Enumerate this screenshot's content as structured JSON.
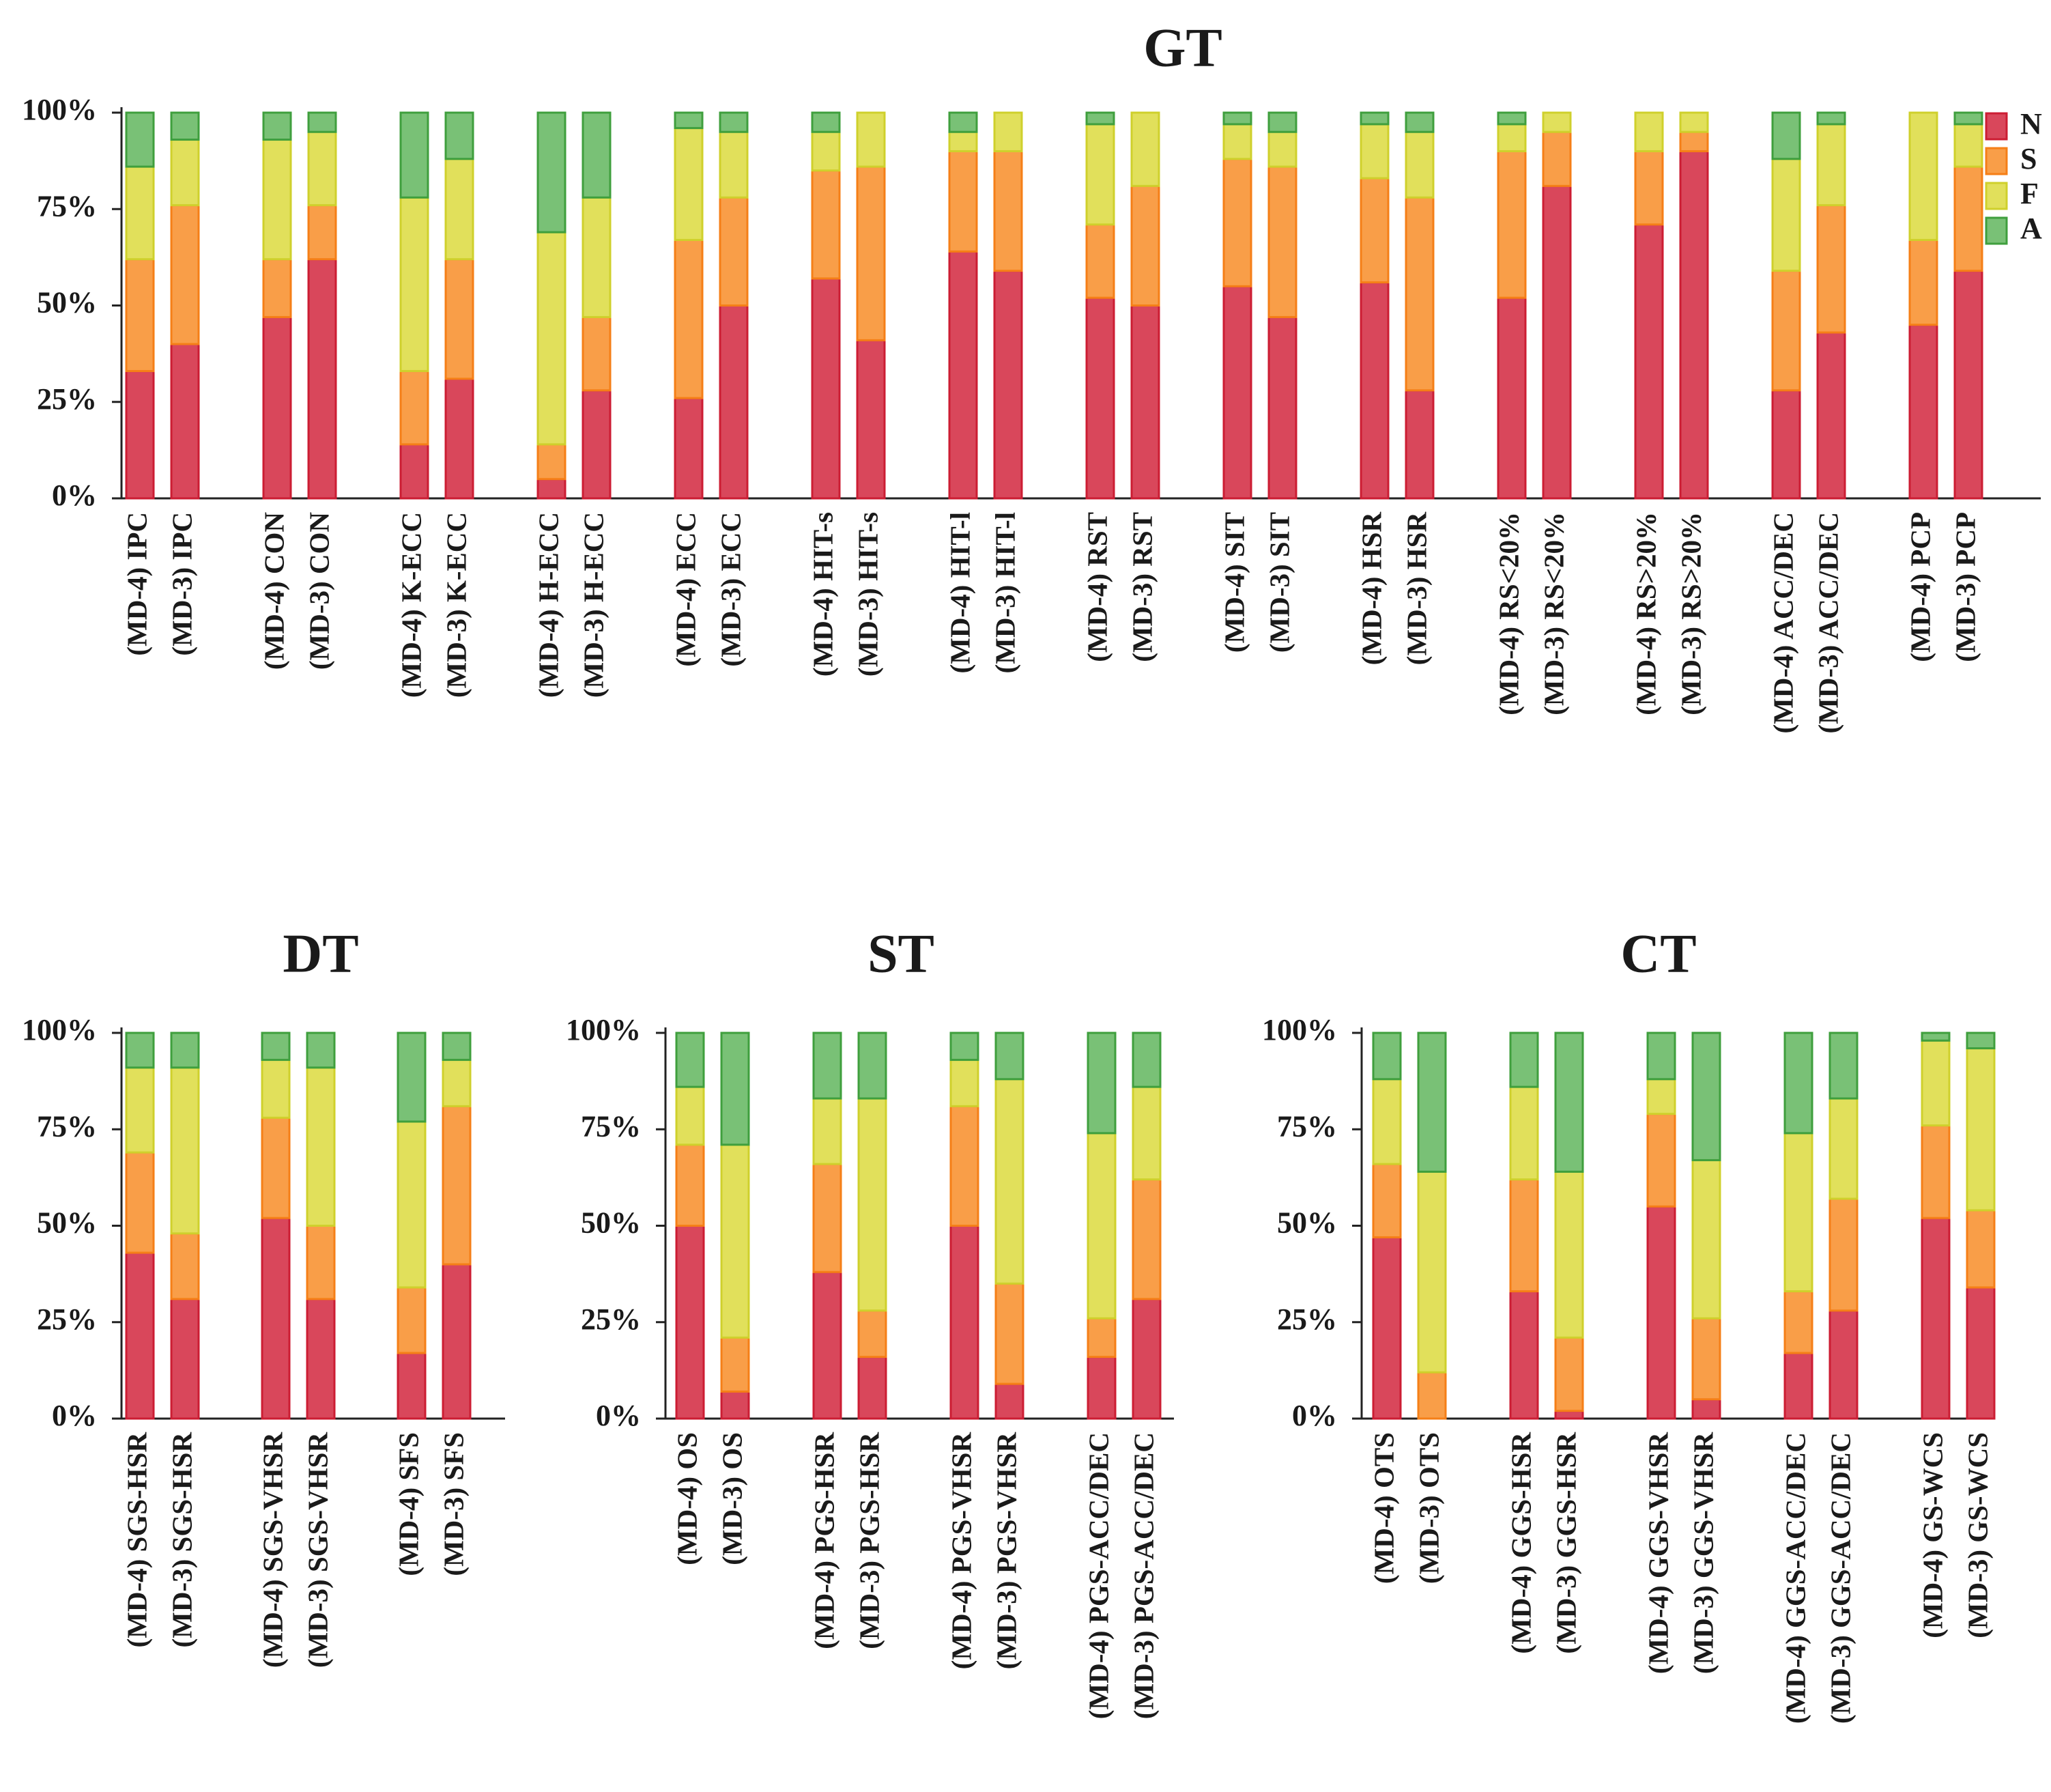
{
  "chart_data": [
    {
      "type": "bar",
      "stacked": true,
      "percent": true,
      "title": "GT",
      "ylim": [
        0,
        100
      ],
      "yticks": [
        "0%",
        "25%",
        "50%",
        "75%",
        "100%"
      ],
      "stack_order": [
        "N",
        "S",
        "F",
        "A"
      ],
      "colors": {
        "N": "#d9475b",
        "S": "#f99e48",
        "F": "#e1e05b",
        "A": "#79c176"
      },
      "legend": {
        "position": "top-right",
        "entries": [
          "N",
          "S",
          "F",
          "A"
        ]
      },
      "categories": [
        "(MD-4) IPC",
        "(MD-3) IPC",
        "(MD-4) CON",
        "(MD-3) CON",
        "(MD-4) K-ECC",
        "(MD-3) K-ECC",
        "(MD-4) H-ECC",
        "(MD-3) H-ECC",
        "(MD-4) ECC",
        "(MD-3) ECC",
        "(MD-4) HIT-s",
        "(MD-3) HIT-s",
        "(MD-4) HIT-l",
        "(MD-3) HIT-l",
        "(MD-4) RST",
        "(MD-3) RST",
        "(MD-4) SIT",
        "(MD-3) SIT",
        "(MD-4) HSR",
        "(MD-3) HSR",
        "(MD-4) RS<20%",
        "(MD-3) RS<20%",
        "(MD-4) RS>20%",
        "(MD-3) RS>20%",
        "(MD-4) ACC/DEC",
        "(MD-3) ACC/DEC",
        "(MD-4) PCP",
        "(MD-3) PCP"
      ],
      "groups": [
        2,
        2,
        2,
        2,
        2,
        2,
        2,
        2,
        2,
        2,
        2,
        2,
        2,
        2
      ],
      "series": [
        {
          "name": "N",
          "values": [
            33,
            40,
            47,
            62,
            14,
            31,
            5,
            28,
            26,
            50,
            57,
            41,
            64,
            59,
            52,
            50,
            55,
            47,
            56,
            28,
            52,
            81,
            71,
            90,
            28,
            43,
            45,
            59
          ]
        },
        {
          "name": "S",
          "values": [
            29,
            36,
            15,
            14,
            19,
            31,
            9,
            19,
            41,
            28,
            28,
            45,
            26,
            31,
            19,
            31,
            33,
            39,
            27,
            50,
            38,
            14,
            19,
            5,
            31,
            33,
            22,
            27
          ]
        },
        {
          "name": "F",
          "values": [
            24,
            17,
            31,
            19,
            45,
            26,
            55,
            31,
            29,
            17,
            10,
            14,
            5,
            10,
            26,
            19,
            9,
            9,
            14,
            17,
            7,
            5,
            10,
            5,
            29,
            21,
            33,
            11
          ]
        },
        {
          "name": "A",
          "values": [
            14,
            7,
            7,
            5,
            22,
            12,
            31,
            22,
            4,
            5,
            5,
            0,
            5,
            0,
            3,
            0,
            3,
            5,
            3,
            5,
            3,
            0,
            0,
            0,
            12,
            3,
            0,
            3
          ]
        }
      ]
    },
    {
      "type": "bar",
      "stacked": true,
      "percent": true,
      "title": "DT",
      "ylim": [
        0,
        100
      ],
      "yticks": [
        "0%",
        "25%",
        "50%",
        "75%",
        "100%"
      ],
      "stack_order": [
        "N",
        "S",
        "F",
        "A"
      ],
      "categories": [
        "(MD-4) SGS-HSR",
        "(MD-3) SGS-HSR",
        "(MD-4) SGS-VHSR",
        "(MD-3) SGS-VHSR",
        "(MD-4) SFS",
        "(MD-3) SFS"
      ],
      "groups": [
        2,
        2,
        2
      ],
      "series": [
        {
          "name": "N",
          "values": [
            43,
            31,
            52,
            31,
            17,
            40
          ]
        },
        {
          "name": "S",
          "values": [
            26,
            17,
            26,
            19,
            17,
            41
          ]
        },
        {
          "name": "F",
          "values": [
            22,
            43,
            15,
            41,
            43,
            12
          ]
        },
        {
          "name": "A",
          "values": [
            9,
            9,
            7,
            9,
            23,
            7
          ]
        }
      ]
    },
    {
      "type": "bar",
      "stacked": true,
      "percent": true,
      "title": "ST",
      "ylim": [
        0,
        100
      ],
      "yticks": [
        "0%",
        "25%",
        "50%",
        "75%",
        "100%"
      ],
      "stack_order": [
        "N",
        "S",
        "F",
        "A"
      ],
      "categories": [
        "(MD-4) OS",
        "(MD-3) OS",
        "(MD-4) PGS-HSR",
        "(MD-3) PGS-HSR",
        "(MD-4) PGS-VHSR",
        "(MD-3) PGS-VHSR",
        "(MD-4) PGS-ACC/DEC",
        "(MD-3) PGS-ACC/DEC"
      ],
      "groups": [
        2,
        2,
        2,
        2
      ],
      "series": [
        {
          "name": "N",
          "values": [
            50,
            7,
            38,
            16,
            50,
            9,
            16,
            31
          ]
        },
        {
          "name": "S",
          "values": [
            21,
            14,
            28,
            12,
            31,
            26,
            10,
            31
          ]
        },
        {
          "name": "F",
          "values": [
            15,
            50,
            17,
            55,
            12,
            53,
            48,
            24
          ]
        },
        {
          "name": "A",
          "values": [
            14,
            29,
            17,
            17,
            7,
            12,
            26,
            14
          ]
        }
      ]
    },
    {
      "type": "bar",
      "stacked": true,
      "percent": true,
      "title": "CT",
      "ylim": [
        0,
        100
      ],
      "yticks": [
        "0%",
        "25%",
        "50%",
        "75%",
        "100%"
      ],
      "stack_order": [
        "N",
        "S",
        "F",
        "A"
      ],
      "categories": [
        "(MD-4) OTS",
        "(MD-3) OTS",
        "(MD-4) GGS-HSR",
        "(MD-3) GGS-HSR",
        "(MD-4) GGS-VHSR",
        "(MD-3) GGS-VHSR",
        "(MD-4) GGS-ACC/DEC",
        "(MD-3) GGS-ACC/DEC",
        "(MD-4) GS-WCS",
        "(MD-3) GS-WCS"
      ],
      "groups": [
        2,
        2,
        2,
        2,
        2
      ],
      "series": [
        {
          "name": "N",
          "values": [
            47,
            0,
            33,
            2,
            55,
            5,
            17,
            28,
            52,
            34
          ]
        },
        {
          "name": "S",
          "values": [
            19,
            12,
            29,
            19,
            24,
            21,
            16,
            29,
            24,
            20
          ]
        },
        {
          "name": "F",
          "values": [
            22,
            52,
            24,
            43,
            9,
            41,
            41,
            26,
            22,
            42
          ]
        },
        {
          "name": "A",
          "values": [
            12,
            36,
            14,
            36,
            12,
            33,
            26,
            17,
            2,
            4
          ]
        }
      ]
    }
  ]
}
